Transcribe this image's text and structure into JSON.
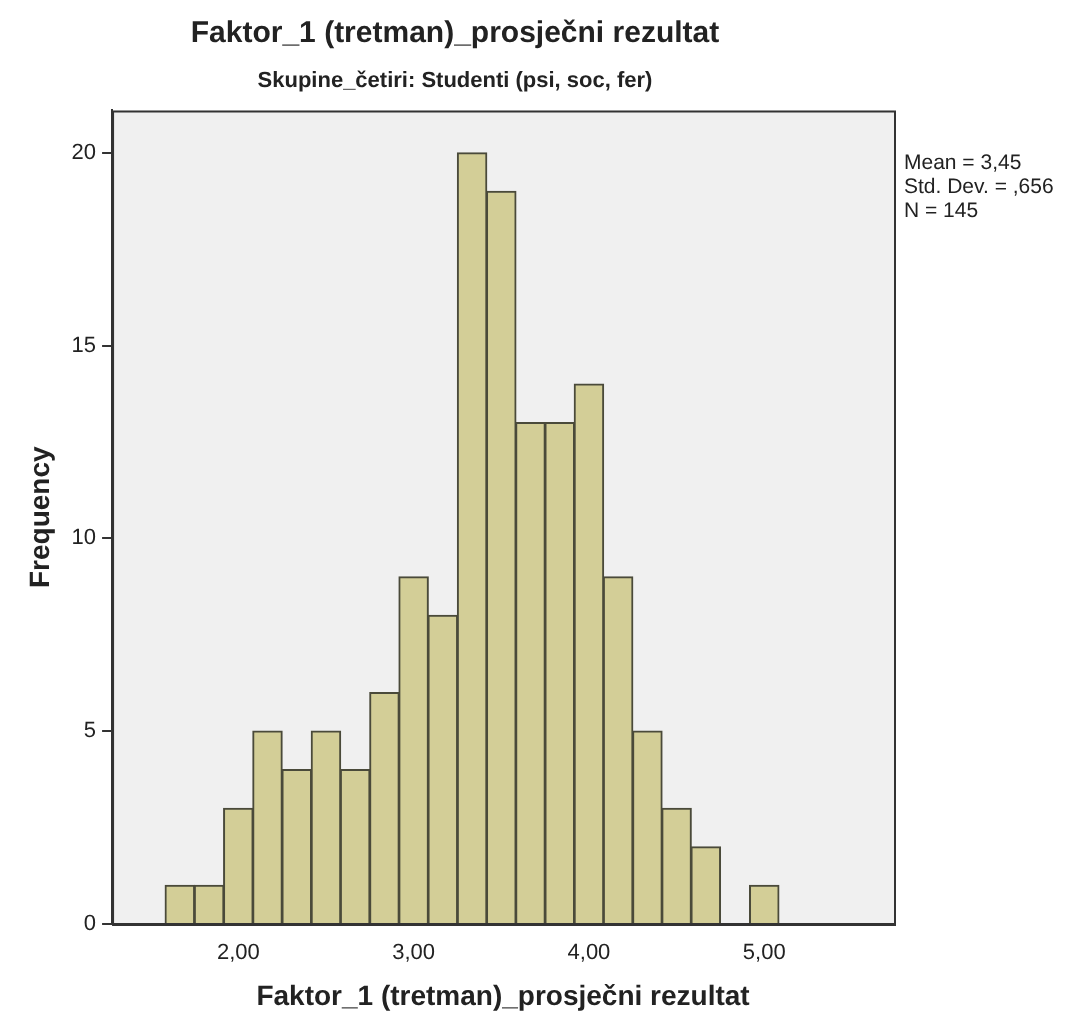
{
  "chart_data": {
    "type": "histogram",
    "title": "Faktor_1 (tretman)_prosječni rezultat",
    "subtitle": "Skupine_četiri: Studenti (psi, soc, fer)",
    "xlabel": "Faktor_1 (tretman)_prosječni rezultat",
    "ylabel": "Frequency",
    "bins": [
      1.583,
      1.75,
      1.917,
      2.083,
      2.25,
      2.417,
      2.583,
      2.75,
      2.917,
      3.083,
      3.25,
      3.417,
      3.583,
      3.75,
      3.917,
      4.083,
      4.25,
      4.417,
      4.583,
      4.75,
      4.917,
      5.083
    ],
    "values": [
      1,
      1,
      3,
      5,
      4,
      5,
      4,
      6,
      9,
      8,
      20,
      19,
      13,
      13,
      14,
      9,
      5,
      3,
      2,
      0,
      1
    ],
    "color": "#d3ce97",
    "xlim": [
      1.28,
      5.74
    ],
    "xticks": [
      {
        "value": 2,
        "label": "2,00"
      },
      {
        "value": 3,
        "label": "3,00"
      },
      {
        "value": 4,
        "label": "4,00"
      },
      {
        "value": 5,
        "label": "5,00"
      }
    ],
    "ylim": [
      0,
      21.1
    ],
    "yticks": [
      0,
      5,
      10,
      15,
      20
    ],
    "grid": false,
    "legend": false,
    "annotations": [
      "Mean = 3,45",
      "Std. Dev. = ,656",
      "N = 145"
    ]
  }
}
